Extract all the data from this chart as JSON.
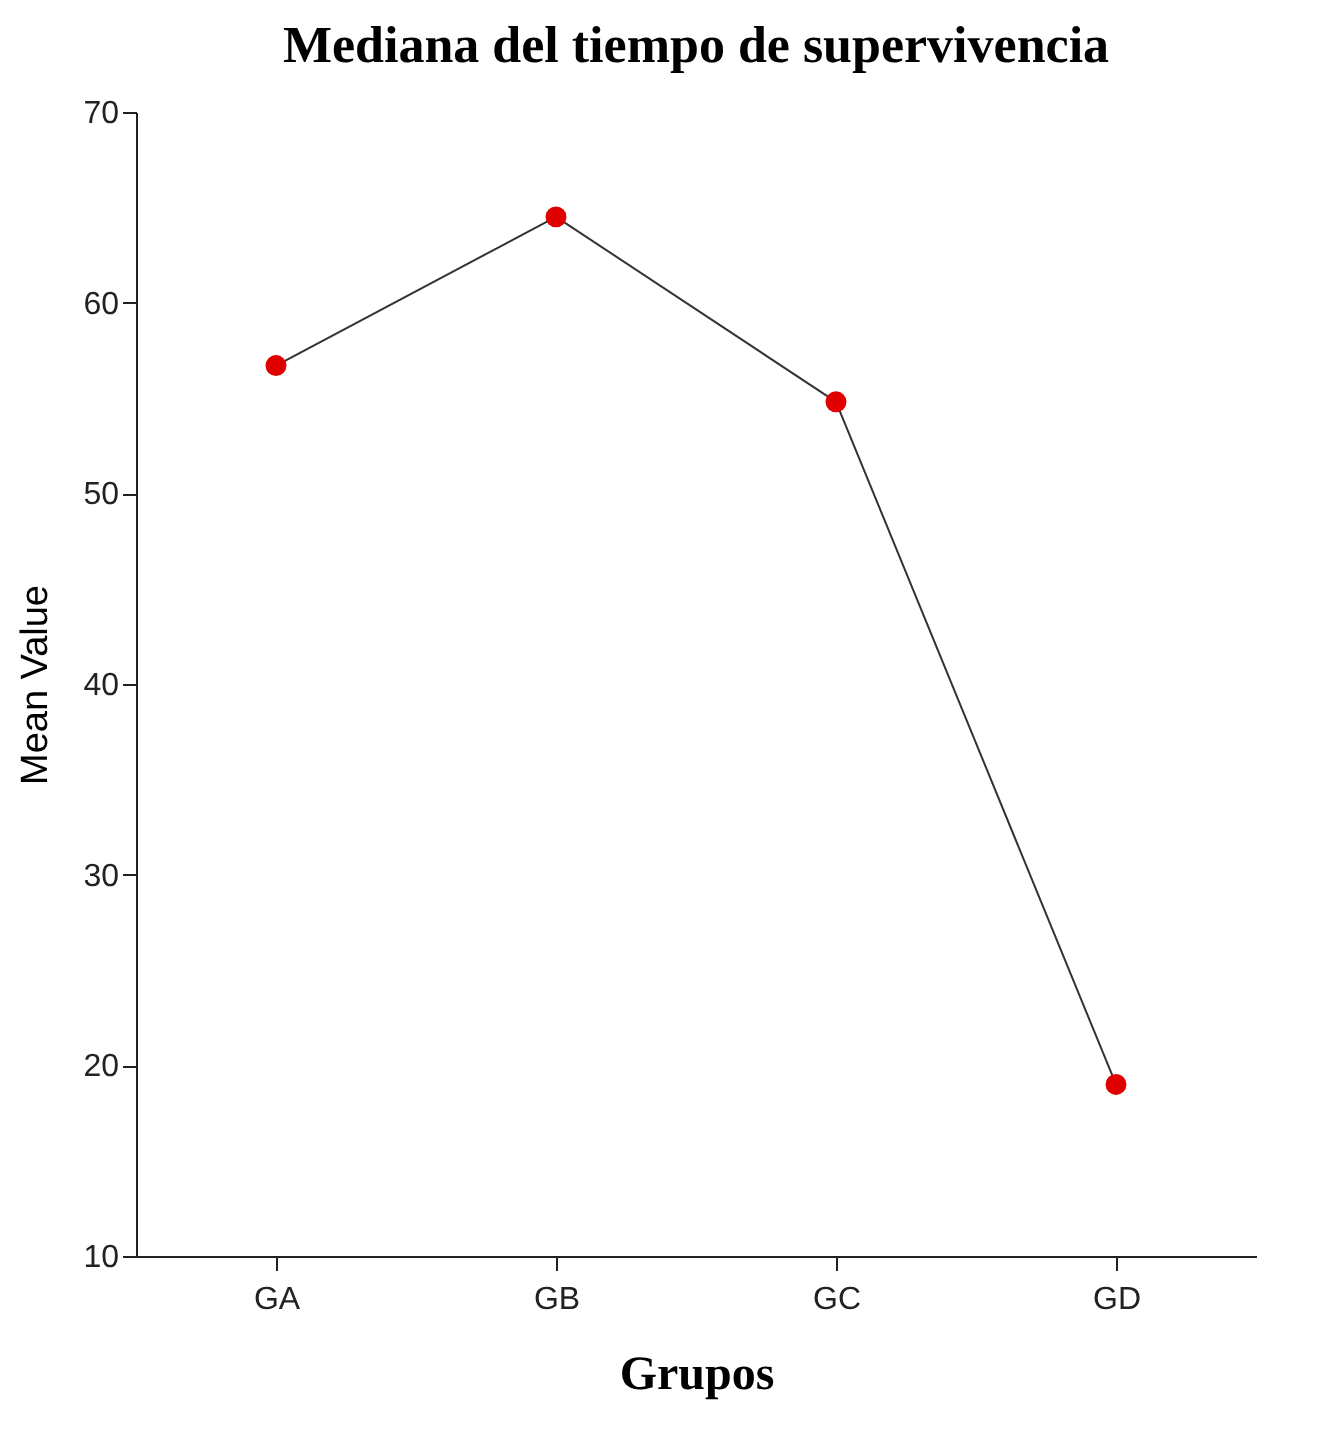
{
  "chart_data": {
    "type": "line",
    "title": "Mediana del tiempo de supervivencia",
    "xlabel": "Grupos",
    "ylabel": "Mean Value",
    "categories": [
      "GA",
      "GB",
      "GC",
      "GD"
    ],
    "series": [
      {
        "color": "#333333",
        "values": [
          56.7,
          64.5,
          54.8,
          19.0
        ]
      }
    ],
    "marker": "circle",
    "ylim": [
      10,
      70
    ],
    "yticks": [
      10,
      20,
      30,
      40,
      50,
      60,
      70
    ],
    "grid": false,
    "legend": false
  }
}
